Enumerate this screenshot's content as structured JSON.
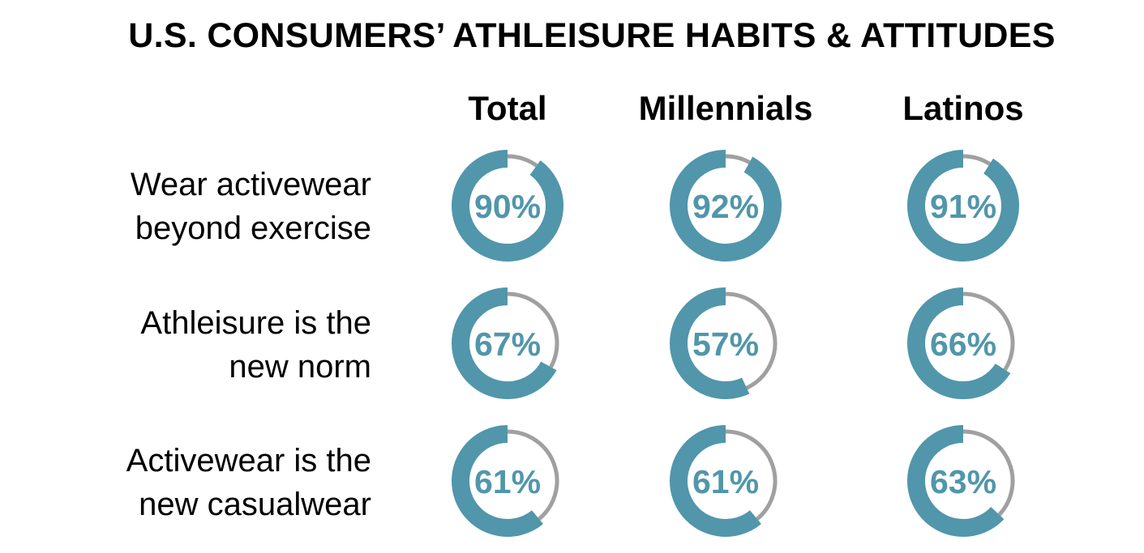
{
  "title": "U.S. CONSUMERS’ ATHLEISURE HABITS & ATTITUDES",
  "columns": [
    "Total",
    "Millennials",
    "Latinos"
  ],
  "rows": [
    {
      "lines": [
        "Wear activewear",
        "beyond exercise"
      ]
    },
    {
      "lines": [
        "Athleisure is the",
        "new norm"
      ]
    },
    {
      "lines": [
        "Activewear is the",
        "new casualwear"
      ]
    }
  ],
  "colors": {
    "fill": "#5196ab",
    "remainder": "#a0a0a0",
    "text": "#5196ab"
  },
  "chart_data": {
    "type": "donut-grid",
    "title": "U.S. CONSUMERS’ ATHLEISURE HABITS & ATTITUDES",
    "groups": [
      "Total",
      "Millennials",
      "Latinos"
    ],
    "statements": [
      "Wear activewear beyond exercise",
      "Athleisure is the new norm",
      "Activewear is the new casualwear"
    ],
    "values": [
      [
        90,
        92,
        91
      ],
      [
        67,
        57,
        66
      ],
      [
        61,
        61,
        63
      ]
    ],
    "labels": [
      [
        "90%",
        "92%",
        "91%"
      ],
      [
        "67%",
        "57%",
        "66%"
      ],
      [
        "61%",
        "61%",
        "63%"
      ]
    ],
    "unit": "%"
  }
}
